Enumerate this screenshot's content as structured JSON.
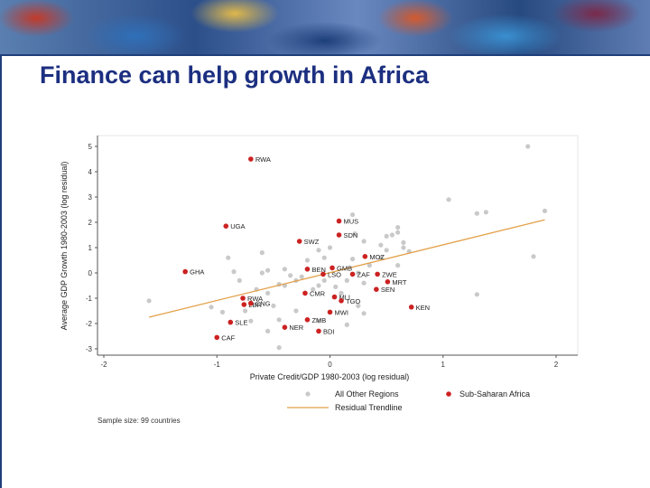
{
  "title": "Finance can help growth in Africa",
  "sample_note": "Sample size: 99 countries",
  "colors": {
    "africa": "#cc2222",
    "other": "#c9c9c9",
    "trend": "#e3a048",
    "title": "#1c2f80"
  },
  "chart_data": {
    "type": "scatter",
    "xlabel": "Private Credit/GDP 1980-2003 (log residual)",
    "ylabel": "Average GDP Growth 1980-2003 (log residual)",
    "xlim": [
      -2,
      2
    ],
    "ylim": [
      -3,
      5
    ],
    "xticks": [
      -2,
      -1,
      0,
      1,
      2
    ],
    "yticks": [
      -3,
      -2,
      -1,
      0,
      1,
      2,
      3,
      4,
      5
    ],
    "legend": [
      {
        "name": "All Other Regions",
        "marker": "dot",
        "color": "#c9c9c9"
      },
      {
        "name": "Sub-Saharan Africa",
        "marker": "dot",
        "color": "#cc2222"
      },
      {
        "name": "Residual Trendline",
        "marker": "line",
        "color": "#e3a048"
      }
    ],
    "trendline": {
      "x": [
        -1.6,
        1.9
      ],
      "y": [
        -1.75,
        2.1
      ]
    },
    "africa": [
      {
        "label": "RWA",
        "x": -0.7,
        "y": 4.5
      },
      {
        "label": "UGA",
        "x": -0.92,
        "y": 1.85
      },
      {
        "label": "MUS",
        "x": 0.08,
        "y": 2.05
      },
      {
        "label": "SDN",
        "x": 0.08,
        "y": 1.5
      },
      {
        "label": "SWZ",
        "x": -0.27,
        "y": 1.25
      },
      {
        "label": "MOZ",
        "x": 0.31,
        "y": 0.65
      },
      {
        "label": "GHA",
        "x": -1.28,
        "y": 0.05
      },
      {
        "label": "BEN",
        "x": -0.2,
        "y": 0.15
      },
      {
        "label": "GMB",
        "x": 0.02,
        "y": 0.2
      },
      {
        "label": "LSO",
        "x": -0.06,
        "y": -0.05
      },
      {
        "label": "ZAF",
        "x": 0.2,
        "y": -0.05
      },
      {
        "label": "ZWE",
        "x": 0.42,
        "y": -0.05
      },
      {
        "label": "MRT",
        "x": 0.51,
        "y": -0.35
      },
      {
        "label": "SEN",
        "x": 0.41,
        "y": -0.65
      },
      {
        "label": "CMR",
        "x": -0.22,
        "y": -0.8
      },
      {
        "label": "MLI",
        "x": 0.04,
        "y": -0.95
      },
      {
        "label": "TGO",
        "x": 0.1,
        "y": -1.1
      },
      {
        "label": "KEN",
        "x": 0.72,
        "y": -1.35
      },
      {
        "label": "RWA",
        "x": -0.77,
        "y": -1.0
      },
      {
        "label": "LBR",
        "x": -0.76,
        "y": -1.25
      },
      {
        "label": "CNG",
        "x": -0.7,
        "y": -1.2
      },
      {
        "label": "MWI",
        "x": 0.0,
        "y": -1.55
      },
      {
        "label": "SLE",
        "x": -0.88,
        "y": -1.95
      },
      {
        "label": "ZMB",
        "x": -0.2,
        "y": -1.85
      },
      {
        "label": "NER",
        "x": -0.4,
        "y": -2.15
      },
      {
        "label": "BDI",
        "x": -0.1,
        "y": -2.3
      },
      {
        "label": "CAF",
        "x": -1.0,
        "y": -2.55
      }
    ],
    "other": [
      {
        "x": 1.75,
        "y": 5.0
      },
      {
        "x": 1.9,
        "y": 2.45
      },
      {
        "x": 1.05,
        "y": 2.9
      },
      {
        "x": 1.3,
        "y": 2.35
      },
      {
        "x": 1.38,
        "y": 2.4
      },
      {
        "x": 1.8,
        "y": 0.65
      },
      {
        "x": 1.3,
        "y": -0.85
      },
      {
        "x": 0.6,
        "y": 1.8
      },
      {
        "x": 0.6,
        "y": 1.6
      },
      {
        "x": 0.55,
        "y": 1.5
      },
      {
        "x": 0.5,
        "y": 1.45
      },
      {
        "x": 0.65,
        "y": 1.2
      },
      {
        "x": 0.45,
        "y": 1.1
      },
      {
        "x": 0.5,
        "y": 0.9
      },
      {
        "x": 0.7,
        "y": 0.85
      },
      {
        "x": 0.2,
        "y": 2.3
      },
      {
        "x": 0.22,
        "y": 1.55
      },
      {
        "x": 0.3,
        "y": 1.25
      },
      {
        "x": 0.35,
        "y": 0.3
      },
      {
        "x": 0.6,
        "y": 0.3
      },
      {
        "x": 0.25,
        "y": 0.0
      },
      {
        "x": 0.15,
        "y": -0.3
      },
      {
        "x": 0.3,
        "y": -0.4
      },
      {
        "x": -0.6,
        "y": 0.8
      },
      {
        "x": -0.55,
        "y": 0.1
      },
      {
        "x": -0.4,
        "y": 0.15
      },
      {
        "x": -0.35,
        "y": -0.1
      },
      {
        "x": -0.3,
        "y": -0.3
      },
      {
        "x": -0.45,
        "y": -0.45
      },
      {
        "x": -0.6,
        "y": 0.0
      },
      {
        "x": -0.9,
        "y": 0.6
      },
      {
        "x": -0.85,
        "y": 0.05
      },
      {
        "x": -0.65,
        "y": -0.65
      },
      {
        "x": -0.55,
        "y": -0.8
      },
      {
        "x": -0.4,
        "y": -0.5
      },
      {
        "x": -0.5,
        "y": -1.3
      },
      {
        "x": -0.45,
        "y": -1.85
      },
      {
        "x": -0.55,
        "y": -2.3
      },
      {
        "x": -0.45,
        "y": -2.95
      },
      {
        "x": 0.05,
        "y": -0.55
      },
      {
        "x": -0.05,
        "y": -0.3
      },
      {
        "x": -0.15,
        "y": -0.65
      },
      {
        "x": -0.1,
        "y": -0.5
      },
      {
        "x": -0.2,
        "y": 0.5
      },
      {
        "x": -0.1,
        "y": 0.9
      },
      {
        "x": -0.3,
        "y": -1.5
      },
      {
        "x": -0.1,
        "y": -1.9
      },
      {
        "x": 0.25,
        "y": -1.3
      },
      {
        "x": 0.3,
        "y": -1.6
      },
      {
        "x": 0.15,
        "y": -2.05
      },
      {
        "x": -1.6,
        "y": -1.1
      },
      {
        "x": -0.8,
        "y": -0.3
      },
      {
        "x": -0.75,
        "y": -1.5
      },
      {
        "x": -0.7,
        "y": -1.9
      },
      {
        "x": -1.05,
        "y": -1.35
      },
      {
        "x": -0.95,
        "y": -1.55
      },
      {
        "x": 0.45,
        "y": 0.6
      },
      {
        "x": 0.2,
        "y": 0.55
      },
      {
        "x": -0.05,
        "y": 0.6
      },
      {
        "x": 0.0,
        "y": 1.0
      },
      {
        "x": -0.25,
        "y": -0.15
      },
      {
        "x": 0.65,
        "y": 1.0
      },
      {
        "x": 0.1,
        "y": -0.8
      }
    ]
  }
}
